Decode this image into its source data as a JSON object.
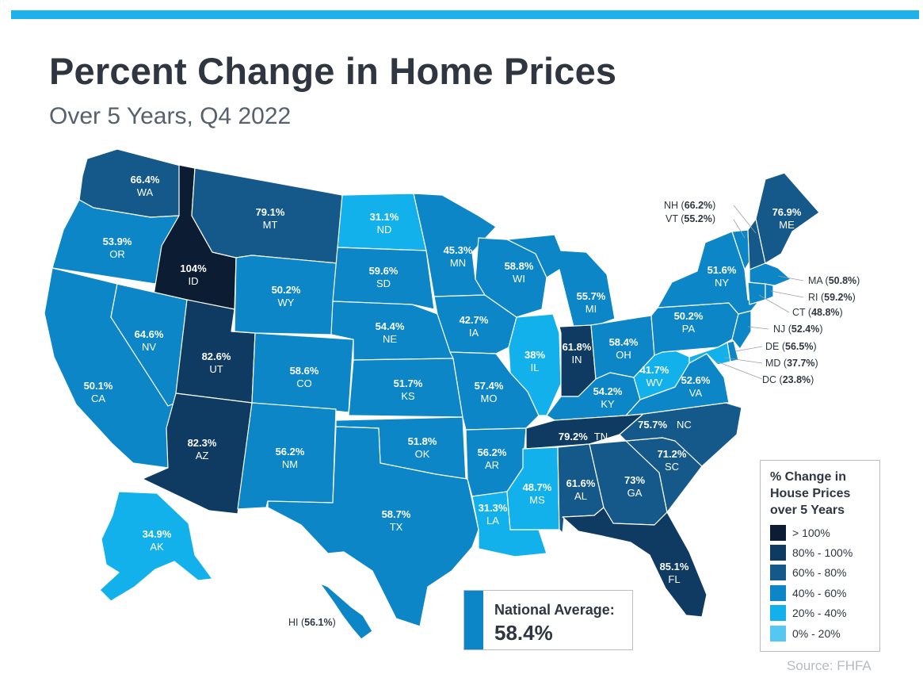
{
  "title": "Percent Change in Home Prices",
  "subtitle": "Over 5 Years, Q4 2022",
  "colors": {
    "accent_bar": "#1fb1ec",
    "text_dark": "#2f3641",
    "gt100": "#0c1d33",
    "80to100": "#0f3a62",
    "60to80": "#15588a",
    "40to60": "#0c86c6",
    "20to40": "#13b1ec",
    "0to20": "#55c8f2"
  },
  "legend": {
    "title": "% Change in House Prices over 5 Years",
    "items": [
      {
        "label": "> 100%",
        "color": "#0c1d33"
      },
      {
        "label": "80% - 100%",
        "color": "#0f3a62"
      },
      {
        "label": "60% - 80%",
        "color": "#15588a"
      },
      {
        "label": "40% - 60%",
        "color": "#0c86c6"
      },
      {
        "label": "20% - 40%",
        "color": "#13b1ec"
      },
      {
        "label": "0% - 20%",
        "color": "#55c8f2"
      }
    ]
  },
  "national_average": {
    "label": "National Average:",
    "value": "58.4%"
  },
  "source": "Source: FHFA",
  "states": {
    "WA": {
      "pct": "66.4%",
      "abbr": "WA"
    },
    "OR": {
      "pct": "53.9%",
      "abbr": "OR"
    },
    "CA": {
      "pct": "50.1%",
      "abbr": "CA"
    },
    "ID": {
      "pct": "104%",
      "abbr": "ID"
    },
    "NV": {
      "pct": "64.6%",
      "abbr": "NV"
    },
    "UT": {
      "pct": "82.6%",
      "abbr": "UT"
    },
    "AZ": {
      "pct": "82.3%",
      "abbr": "AZ"
    },
    "MT": {
      "pct": "79.1%",
      "abbr": "MT"
    },
    "WY": {
      "pct": "50.2%",
      "abbr": "WY"
    },
    "CO": {
      "pct": "58.6%",
      "abbr": "CO"
    },
    "NM": {
      "pct": "56.2%",
      "abbr": "NM"
    },
    "ND": {
      "pct": "31.1%",
      "abbr": "ND"
    },
    "SD": {
      "pct": "59.6%",
      "abbr": "SD"
    },
    "NE": {
      "pct": "54.4%",
      "abbr": "NE"
    },
    "KS": {
      "pct": "51.7%",
      "abbr": "KS"
    },
    "OK": {
      "pct": "51.8%",
      "abbr": "OK"
    },
    "TX": {
      "pct": "58.7%",
      "abbr": "TX"
    },
    "MN": {
      "pct": "45.3%",
      "abbr": "MN"
    },
    "IA": {
      "pct": "42.7%",
      "abbr": "IA"
    },
    "MO": {
      "pct": "57.4%",
      "abbr": "MO"
    },
    "AR": {
      "pct": "56.2%",
      "abbr": "AR"
    },
    "LA": {
      "pct": "31.3%",
      "abbr": "LA"
    },
    "WI": {
      "pct": "58.8%",
      "abbr": "WI"
    },
    "IL": {
      "pct": "38%",
      "abbr": "IL"
    },
    "MI": {
      "pct": "55.7%",
      "abbr": "MI"
    },
    "IN": {
      "pct": "61.8%",
      "abbr": "IN"
    },
    "OH": {
      "pct": "58.4%",
      "abbr": "OH"
    },
    "KY": {
      "pct": "54.2%",
      "abbr": "KY"
    },
    "TN": {
      "pct": "79.2%",
      "abbr": "TN"
    },
    "MS": {
      "pct": "48.7%",
      "abbr": "MS"
    },
    "AL": {
      "pct": "61.6%",
      "abbr": "AL"
    },
    "GA": {
      "pct": "73%",
      "abbr": "GA"
    },
    "FL": {
      "pct": "85.1%",
      "abbr": "FL"
    },
    "SC": {
      "pct": "71.2%",
      "abbr": "SC"
    },
    "NC": {
      "pct": "75.7%",
      "abbr": "NC"
    },
    "VA": {
      "pct": "52.6%",
      "abbr": "VA"
    },
    "WV": {
      "pct": "41.7%",
      "abbr": "WV"
    },
    "PA": {
      "pct": "50.2%",
      "abbr": "PA"
    },
    "NY": {
      "pct": "51.6%",
      "abbr": "NY"
    },
    "ME": {
      "pct": "76.9%",
      "abbr": "ME"
    },
    "AK": {
      "pct": "34.9%",
      "abbr": "AK"
    },
    "NH": {
      "pct": "66.2%",
      "abbr": "NH"
    },
    "VT": {
      "pct": "55.2%",
      "abbr": "VT"
    },
    "MA": {
      "pct": "50.8%",
      "abbr": "MA"
    },
    "RI": {
      "pct": "59.2%",
      "abbr": "RI"
    },
    "CT": {
      "pct": "48.8%",
      "abbr": "CT"
    },
    "NJ": {
      "pct": "52.4%",
      "abbr": "NJ"
    },
    "DE": {
      "pct": "56.5%",
      "abbr": "DE"
    },
    "MD": {
      "pct": "37.7%",
      "abbr": "MD"
    },
    "DC": {
      "pct": "23.8%",
      "abbr": "DC"
    },
    "HI": {
      "pct": "56.1%",
      "abbr": "HI"
    }
  }
}
